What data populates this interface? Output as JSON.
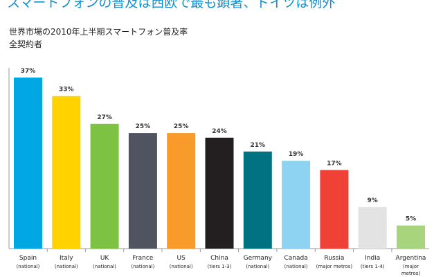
{
  "chart_data": {
    "type": "bar",
    "title": "スマートフォンの普及は西欧で最も顕著、ドイツは例外",
    "subtitle": [
      "世界市場の2010年上半期スマートフォン普及率",
      "全契約者"
    ],
    "categories": [
      "Spain",
      "Italy",
      "UK",
      "France",
      "US",
      "China",
      "Germany",
      "Canada",
      "Russia",
      "India",
      "Argentina"
    ],
    "category_notes": [
      [
        "(national)"
      ],
      [
        "(national)"
      ],
      [
        "(national)"
      ],
      [
        "(national)"
      ],
      [
        "(national)"
      ],
      [
        "(tiers 1-3)"
      ],
      [
        "(national)"
      ],
      [
        "(national)"
      ],
      [
        "(major metros)"
      ],
      [
        "(tiers 1-4)"
      ],
      [
        "(major",
        "metros)"
      ]
    ],
    "values": [
      37,
      33,
      27,
      25,
      25,
      24,
      21,
      19,
      17,
      9,
      5
    ],
    "value_labels": [
      "37%",
      "33%",
      "27%",
      "25%",
      "25%",
      "24%",
      "21%",
      "19%",
      "17%",
      "9%",
      "5%"
    ],
    "colors": [
      "#00a7e3",
      "#ffd200",
      "#7dc242",
      "#4f5460",
      "#f89b2b",
      "#231f20",
      "#007282",
      "#8ed3f2",
      "#ef4136",
      "#e3e3e3",
      "#a8d47e"
    ],
    "ylim": [
      0,
      37
    ],
    "grid": false,
    "legend": "none"
  }
}
